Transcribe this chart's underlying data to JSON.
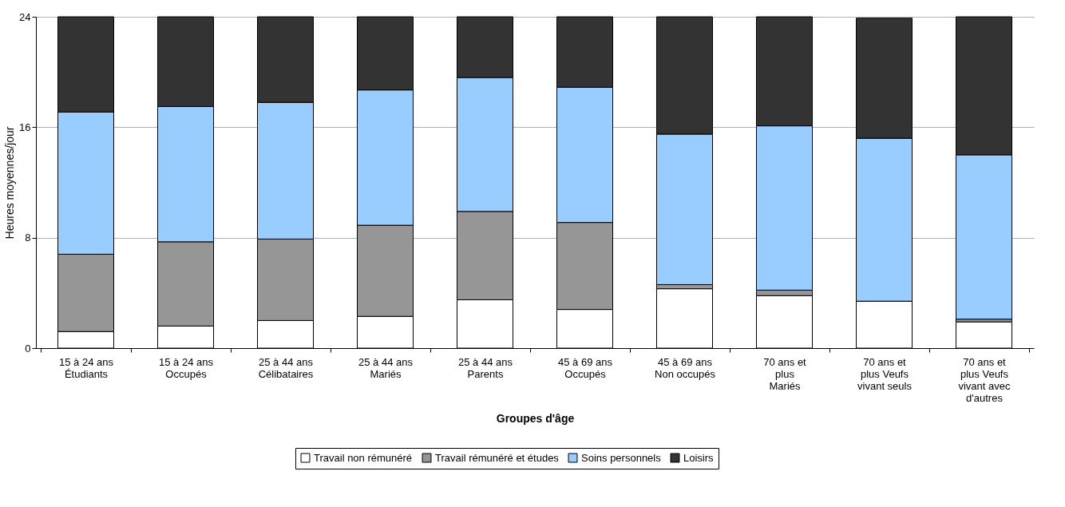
{
  "chart_data": {
    "type": "bar",
    "stacked": true,
    "xlabel": "Groupes d'âge",
    "ylabel": "Heures moyennes/jour",
    "categories": [
      "15 à 24 ans\nÉtudiants",
      "15 à 24 ans\nOccupés",
      "25 à 44 ans\nCélibataires",
      "25 à 44 ans\nMariés",
      "25 à 44 ans\nParents",
      "45 à 69 ans\nOccupés",
      "45 à 69 ans\nNon occupés",
      "70 ans et\nplus\nMariés",
      "70 ans et\nplus Veufs\nvivant seuls",
      "70 ans et\nplus Veufs\nvivant avec\nd'autres"
    ],
    "series": [
      {
        "name": "Travail non rémunéré",
        "color": "#ffffff",
        "values": [
          1.2,
          1.6,
          2.0,
          2.3,
          3.5,
          2.8,
          4.3,
          3.8,
          3.4,
          1.9
        ]
      },
      {
        "name": "Travail rémunéré et études",
        "color": "#969696",
        "values": [
          5.6,
          6.1,
          5.9,
          6.6,
          6.4,
          6.3,
          0.3,
          0.4,
          0.0,
          0.2
        ]
      },
      {
        "name": "Soins personnels",
        "color": "#99ccff",
        "values": [
          10.3,
          9.8,
          9.9,
          9.8,
          9.7,
          9.8,
          10.9,
          11.9,
          11.8,
          11.9
        ]
      },
      {
        "name": "Loisirs",
        "color": "#333333",
        "values": [
          6.9,
          6.5,
          6.2,
          5.3,
          4.4,
          5.1,
          8.5,
          7.9,
          8.7,
          10.0
        ]
      }
    ],
    "ylim": [
      0,
      24
    ],
    "yticks": [
      0,
      8,
      16,
      24
    ],
    "grid": "y",
    "legend": "bottom"
  }
}
